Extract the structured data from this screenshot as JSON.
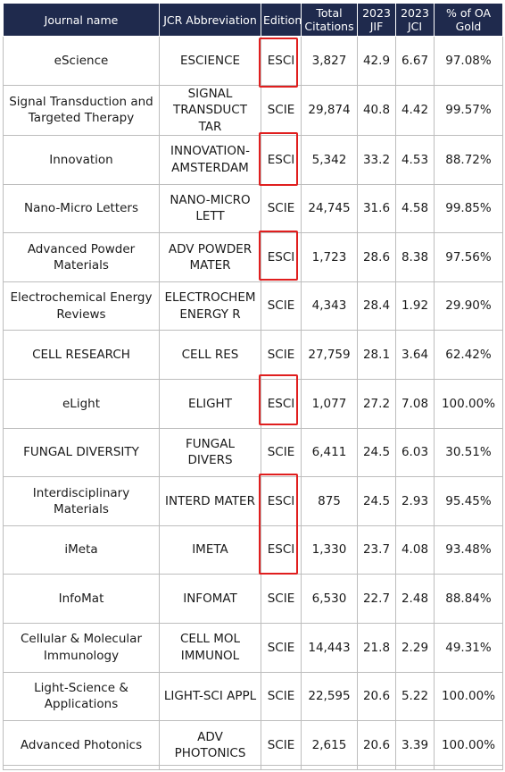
{
  "headers": {
    "journal": "Journal name",
    "abbr": "JCR Abbreviation",
    "edition": "Edition",
    "citations": "Total Citations",
    "jif": "2023 JIF",
    "jci": "2023 JCI",
    "oa": "% of OA Gold"
  },
  "rows": [
    {
      "journal": "eScience",
      "abbr": "ESCIENCE",
      "edition": "ESCI",
      "citations": "3,827",
      "jif": "42.9",
      "jci": "6.67",
      "oa": "97.08%"
    },
    {
      "journal": "Signal Transduction and Targeted Therapy",
      "abbr": "SIGNAL TRANSDUCT TAR",
      "edition": "SCIE",
      "citations": "29,874",
      "jif": "40.8",
      "jci": "4.42",
      "oa": "99.57%"
    },
    {
      "journal": "Innovation",
      "abbr": "INNOVATION-AMSTERDAM",
      "edition": "ESCI",
      "citations": "5,342",
      "jif": "33.2",
      "jci": "4.53",
      "oa": "88.72%"
    },
    {
      "journal": "Nano-Micro Letters",
      "abbr": "NANO-MICRO LETT",
      "edition": "SCIE",
      "citations": "24,745",
      "jif": "31.6",
      "jci": "4.58",
      "oa": "99.85%"
    },
    {
      "journal": "Advanced Powder Materials",
      "abbr": "ADV POWDER MATER",
      "edition": "ESCI",
      "citations": "1,723",
      "jif": "28.6",
      "jci": "8.38",
      "oa": "97.56%"
    },
    {
      "journal": "Electrochemical Energy Reviews",
      "abbr": "ELECTROCHEM ENERGY R",
      "edition": "SCIE",
      "citations": "4,343",
      "jif": "28.4",
      "jci": "1.92",
      "oa": "29.90%"
    },
    {
      "journal": "CELL RESEARCH",
      "abbr": "CELL RES",
      "edition": "SCIE",
      "citations": "27,759",
      "jif": "28.1",
      "jci": "3.64",
      "oa": "62.42%"
    },
    {
      "journal": "eLight",
      "abbr": "ELIGHT",
      "edition": "ESCI",
      "citations": "1,077",
      "jif": "27.2",
      "jci": "7.08",
      "oa": "100.00%"
    },
    {
      "journal": "FUNGAL DIVERSITY",
      "abbr": "FUNGAL DIVERS",
      "edition": "SCIE",
      "citations": "6,411",
      "jif": "24.5",
      "jci": "6.03",
      "oa": "30.51%"
    },
    {
      "journal": "Interdisciplinary Materials",
      "abbr": "INTERD MATER",
      "edition": "ESCI",
      "citations": "875",
      "jif": "24.5",
      "jci": "2.93",
      "oa": "95.45%"
    },
    {
      "journal": "iMeta",
      "abbr": "IMETA",
      "edition": "ESCI",
      "citations": "1,330",
      "jif": "23.7",
      "jci": "4.08",
      "oa": "93.48%"
    },
    {
      "journal": "InfoMat",
      "abbr": "INFOMAT",
      "edition": "SCIE",
      "citations": "6,530",
      "jif": "22.7",
      "jci": "2.48",
      "oa": "88.84%"
    },
    {
      "journal": "Cellular & Molecular Immunology",
      "abbr": "CELL MOL IMMUNOL",
      "edition": "SCIE",
      "citations": "14,443",
      "jif": "21.8",
      "jci": "2.29",
      "oa": "49.31%"
    },
    {
      "journal": "Light-Science & Applications",
      "abbr": "LIGHT-SCI APPL",
      "edition": "SCIE",
      "citations": "22,595",
      "jif": "20.6",
      "jci": "5.22",
      "oa": "100.00%"
    },
    {
      "journal": "Advanced Photonics",
      "abbr": "ADV PHOTONICS",
      "edition": "SCIE",
      "citations": "2,615",
      "jif": "20.6",
      "jci": "3.39",
      "oa": "100.00%"
    }
  ],
  "colors": {
    "header_bg": "#1f2a4d",
    "highlight": "#e01e1e"
  }
}
